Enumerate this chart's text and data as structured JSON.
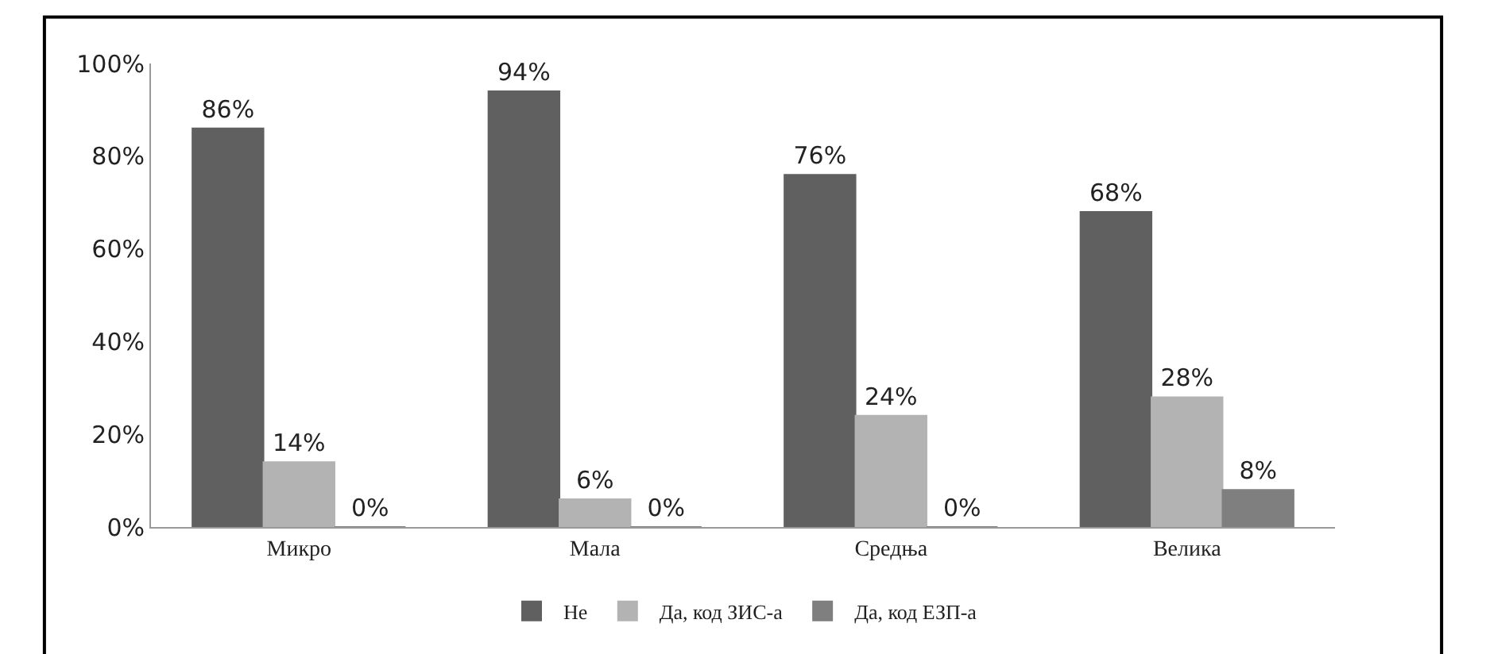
{
  "chart_data": {
    "type": "bar",
    "categories": [
      "Микро",
      "Мала",
      "Средња",
      "Велика"
    ],
    "series": [
      {
        "name": "Не",
        "color": "#606060",
        "values": [
          86,
          94,
          76,
          68
        ],
        "value_labels": [
          "86%",
          "94%",
          "76%",
          "68%"
        ]
      },
      {
        "name": "Да, код ЗИС-а",
        "color": "#b3b3b3",
        "values": [
          14,
          6,
          24,
          28
        ],
        "value_labels": [
          "14%",
          "6%",
          "24%",
          "28%"
        ]
      },
      {
        "name": "Да, код ЕЗП-а",
        "color": "#7f7f7f",
        "values": [
          0,
          0,
          0,
          8
        ],
        "value_labels": [
          "0%",
          "0%",
          "0%",
          "8%"
        ]
      }
    ],
    "ylim": [
      0,
      100
    ],
    "yticks": [
      {
        "value": 0,
        "label": "0%"
      },
      {
        "value": 20,
        "label": "20%"
      },
      {
        "value": 40,
        "label": "40%"
      },
      {
        "value": 60,
        "label": "60%"
      },
      {
        "value": 80,
        "label": "80%"
      },
      {
        "value": 100,
        "label": "100%"
      }
    ],
    "legend": "bottom"
  }
}
